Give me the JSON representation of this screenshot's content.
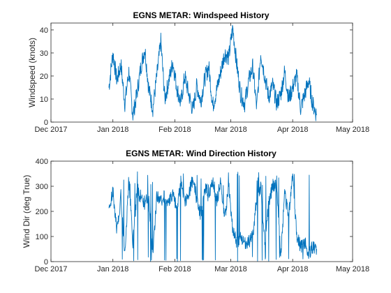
{
  "chart_data": [
    {
      "type": "line",
      "title": "EGNS METAR: Windspeed History",
      "xlabel": "",
      "ylabel": "Windspeed (knots)",
      "x_ticks": [
        "Dec 2017",
        "Jan 2018",
        "Feb 2018",
        "Mar 2018",
        "Apr 2018",
        "May 2018"
      ],
      "y_ticks": [
        "0",
        "10",
        "20",
        "30",
        "40"
      ],
      "xlim": [
        "2017-12-01",
        "2018-05-01"
      ],
      "ylim": [
        0,
        43
      ],
      "grid": false,
      "color": "#0072bd",
      "series": [
        {
          "x": [
            "2017-12-30",
            "2018-01-01",
            "2018-01-03",
            "2018-01-05",
            "2018-01-07",
            "2018-01-09",
            "2018-01-11",
            "2018-01-13",
            "2018-01-15",
            "2018-01-17",
            "2018-01-19",
            "2018-01-21",
            "2018-01-23",
            "2018-01-25",
            "2018-01-27",
            "2018-01-29",
            "2018-01-31",
            "2018-02-02",
            "2018-02-04",
            "2018-02-06",
            "2018-02-08",
            "2018-02-10",
            "2018-02-12",
            "2018-02-14",
            "2018-02-16",
            "2018-02-18",
            "2018-02-20",
            "2018-02-22",
            "2018-02-24",
            "2018-02-26",
            "2018-02-28",
            "2018-03-02",
            "2018-03-04",
            "2018-03-06",
            "2018-03-08",
            "2018-03-10",
            "2018-03-12",
            "2018-03-14",
            "2018-03-16",
            "2018-03-18",
            "2018-03-20",
            "2018-03-22",
            "2018-03-24",
            "2018-03-26",
            "2018-03-28",
            "2018-03-30",
            "2018-04-01",
            "2018-04-03",
            "2018-04-05",
            "2018-04-07",
            "2018-04-09",
            "2018-04-11",
            "2018-04-13"
          ],
          "values": [
            15,
            30,
            18,
            25,
            8,
            22,
            3,
            12,
            24,
            32,
            14,
            6,
            20,
            35,
            10,
            18,
            26,
            15,
            8,
            20,
            12,
            5,
            16,
            9,
            19,
            24,
            7,
            14,
            22,
            30,
            28,
            41,
            25,
            12,
            8,
            18,
            24,
            6,
            30,
            20,
            11,
            16,
            8,
            12,
            22,
            10,
            15,
            20,
            6,
            12,
            18,
            8,
            3
          ]
        }
      ]
    },
    {
      "type": "line",
      "title": "EGNS METAR: Wind Direction History",
      "xlabel": "",
      "ylabel": "Wind Dir (deg True)",
      "x_ticks": [
        "Dec 2017",
        "Jan 2018",
        "Feb 2018",
        "Mar 2018",
        "Apr 2018",
        "May 2018"
      ],
      "y_ticks": [
        "0",
        "100",
        "200",
        "300",
        "400"
      ],
      "xlim": [
        "2017-12-01",
        "2018-05-01"
      ],
      "ylim": [
        0,
        400
      ],
      "grid": false,
      "color": "#0072bd",
      "series": [
        {
          "x": [
            "2017-12-30",
            "2018-01-01",
            "2018-01-03",
            "2018-01-05",
            "2018-01-07",
            "2018-01-09",
            "2018-01-11",
            "2018-01-13",
            "2018-01-15",
            "2018-01-17",
            "2018-01-19",
            "2018-01-21",
            "2018-01-23",
            "2018-01-25",
            "2018-01-27",
            "2018-01-29",
            "2018-01-31",
            "2018-02-02",
            "2018-02-04",
            "2018-02-06",
            "2018-02-08",
            "2018-02-10",
            "2018-02-12",
            "2018-02-14",
            "2018-02-16",
            "2018-02-18",
            "2018-02-20",
            "2018-02-22",
            "2018-02-24",
            "2018-02-26",
            "2018-02-28",
            "2018-03-02",
            "2018-03-04",
            "2018-03-06",
            "2018-03-08",
            "2018-03-10",
            "2018-03-12",
            "2018-03-14",
            "2018-03-16",
            "2018-03-18",
            "2018-03-20",
            "2018-03-22",
            "2018-03-24",
            "2018-03-26",
            "2018-03-28",
            "2018-03-30",
            "2018-04-01",
            "2018-04-03",
            "2018-04-05",
            "2018-04-07",
            "2018-04-09",
            "2018-04-11",
            "2018-04-13"
          ],
          "values": [
            200,
            280,
            120,
            260,
            30,
            330,
            80,
            270,
            260,
            230,
            255,
            20,
            270,
            240,
            260,
            230,
            280,
            200,
            320,
            240,
            270,
            330,
            250,
            180,
            300,
            260,
            330,
            240,
            320,
            170,
            300,
            120,
            80,
            90,
            70,
            80,
            100,
            260,
            300,
            80,
            240,
            300,
            320,
            20,
            270,
            180,
            350,
            100,
            60,
            80,
            30,
            60,
            50
          ]
        }
      ]
    }
  ]
}
